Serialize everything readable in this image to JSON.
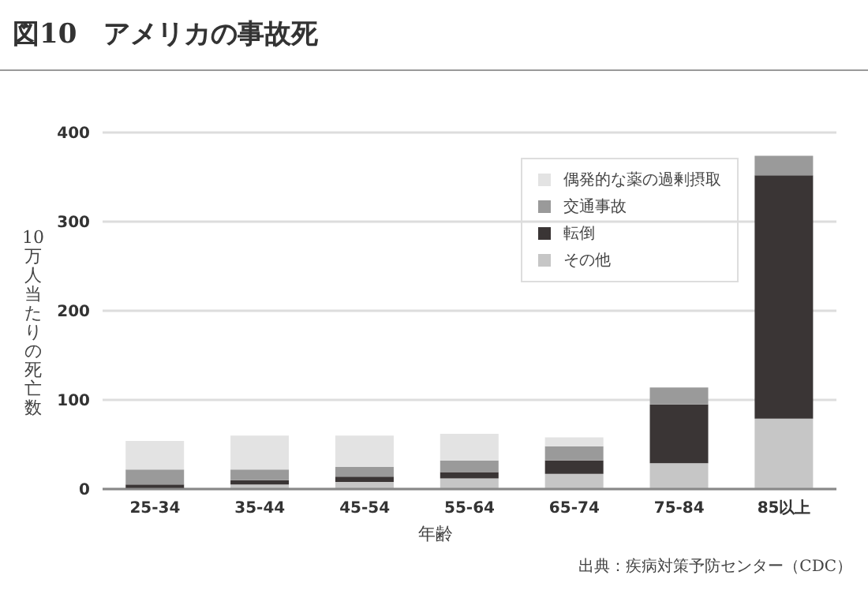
{
  "chart_data": {
    "type": "bar",
    "title": "図10　アメリカの事故死",
    "xlabel": "年齢",
    "ylabel": "10万人当たりの死亡数",
    "annotations": [
      "出典：疾病対策予防センター（CDC）"
    ],
    "categories": [
      "25-34",
      "35-44",
      "45-54",
      "55-64",
      "65-74",
      "75-84",
      "85以上"
    ],
    "stacked": true,
    "series": [
      {
        "name": "その他",
        "color": "#c6c6c6",
        "values": [
          null,
          5,
          8,
          12,
          17,
          29,
          79
        ]
      },
      {
        "name": "転倒",
        "color": "#3a3535",
        "values": [
          5,
          5,
          6,
          7,
          15,
          66,
          273
        ]
      },
      {
        "name": "交通事故",
        "color": "#9a9a9a",
        "values": [
          17,
          12,
          11,
          13,
          16,
          19,
          22
        ]
      },
      {
        "name": "偶発的な薬の過剰摂取",
        "color": "#e3e3e3",
        "values": [
          32,
          38,
          35,
          30,
          10,
          0,
          0
        ]
      }
    ],
    "ylim": [
      0,
      400
    ],
    "yticks": [
      0,
      100,
      200,
      300,
      400
    ],
    "grid": "y",
    "legend": "top right"
  }
}
